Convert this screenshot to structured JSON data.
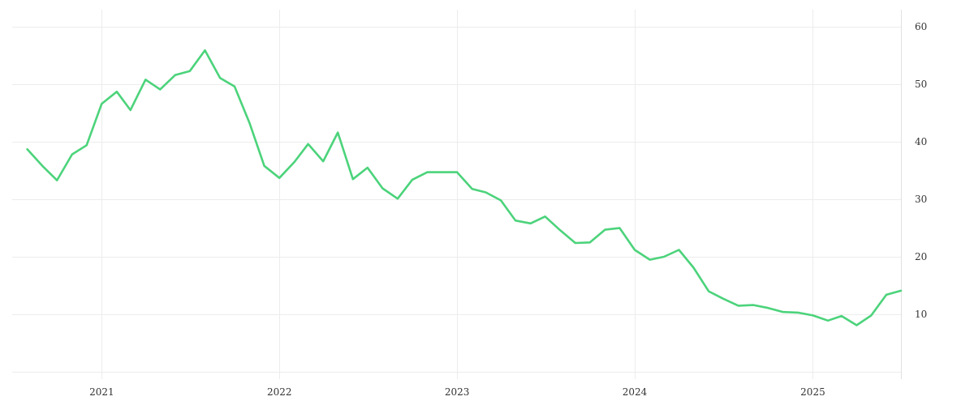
{
  "chart_data": {
    "type": "line",
    "title": "",
    "xlabel": "",
    "ylabel": "",
    "y_axis_side": "right",
    "grid": true,
    "ylim": [
      0,
      62
    ],
    "xlim": [
      "2020-07-01",
      "2025-07-01"
    ],
    "y_ticks": [
      10,
      20,
      30,
      40,
      50,
      60
    ],
    "x_ticks": [
      {
        "date": "2021-01-01",
        "label": "2021"
      },
      {
        "date": "2022-01-01",
        "label": "2022"
      },
      {
        "date": "2023-01-01",
        "label": "2023"
      },
      {
        "date": "2024-01-01",
        "label": "2024"
      },
      {
        "date": "2025-01-01",
        "label": "2025"
      }
    ],
    "colors": {
      "series": "#4cd37b"
    },
    "series": [
      {
        "x": [
          "2020-08-01",
          "2020-09-01",
          "2020-10-01",
          "2020-11-01",
          "2020-12-01",
          "2021-01-01",
          "2021-02-01",
          "2021-03-01",
          "2021-04-01",
          "2021-05-01",
          "2021-06-01",
          "2021-07-01",
          "2021-08-01",
          "2021-09-01",
          "2021-10-01",
          "2021-11-01",
          "2021-12-01",
          "2022-01-01",
          "2022-02-01",
          "2022-03-01",
          "2022-04-01",
          "2022-05-01",
          "2022-06-01",
          "2022-07-01",
          "2022-08-01",
          "2022-09-01",
          "2022-10-01",
          "2022-11-01",
          "2022-12-01",
          "2023-01-01",
          "2023-02-01",
          "2023-03-01",
          "2023-04-01",
          "2023-05-01",
          "2023-06-01",
          "2023-07-01",
          "2023-08-01",
          "2023-09-01",
          "2023-10-01",
          "2023-11-01",
          "2023-12-01",
          "2024-01-01",
          "2024-02-01",
          "2024-03-01",
          "2024-04-01",
          "2024-05-01",
          "2024-06-01",
          "2024-07-01",
          "2024-08-01",
          "2024-09-01",
          "2024-10-01",
          "2024-11-01",
          "2024-12-01",
          "2025-01-01",
          "2025-02-01",
          "2025-03-01",
          "2025-04-01",
          "2025-05-01",
          "2025-06-01",
          "2025-07-01"
        ],
        "values": [
          38.7,
          35.8,
          33.3,
          37.8,
          39.4,
          46.6,
          48.7,
          45.5,
          50.8,
          49.1,
          51.6,
          52.3,
          55.9,
          51.1,
          49.6,
          43.2,
          35.8,
          33.7,
          36.5,
          39.6,
          36.6,
          41.6,
          33.5,
          35.5,
          31.9,
          30.1,
          33.4,
          34.7,
          34.7,
          34.7,
          31.8,
          31.2,
          29.8,
          26.3,
          25.8,
          27.0,
          24.6,
          22.4,
          22.5,
          24.7,
          25.0,
          21.2,
          19.5,
          20.0,
          21.2,
          18.1,
          14.0,
          12.7,
          11.5,
          11.6,
          11.1,
          10.4,
          10.3,
          9.8,
          8.9,
          9.7,
          8.1,
          9.8,
          13.4,
          14.1
        ]
      }
    ]
  }
}
